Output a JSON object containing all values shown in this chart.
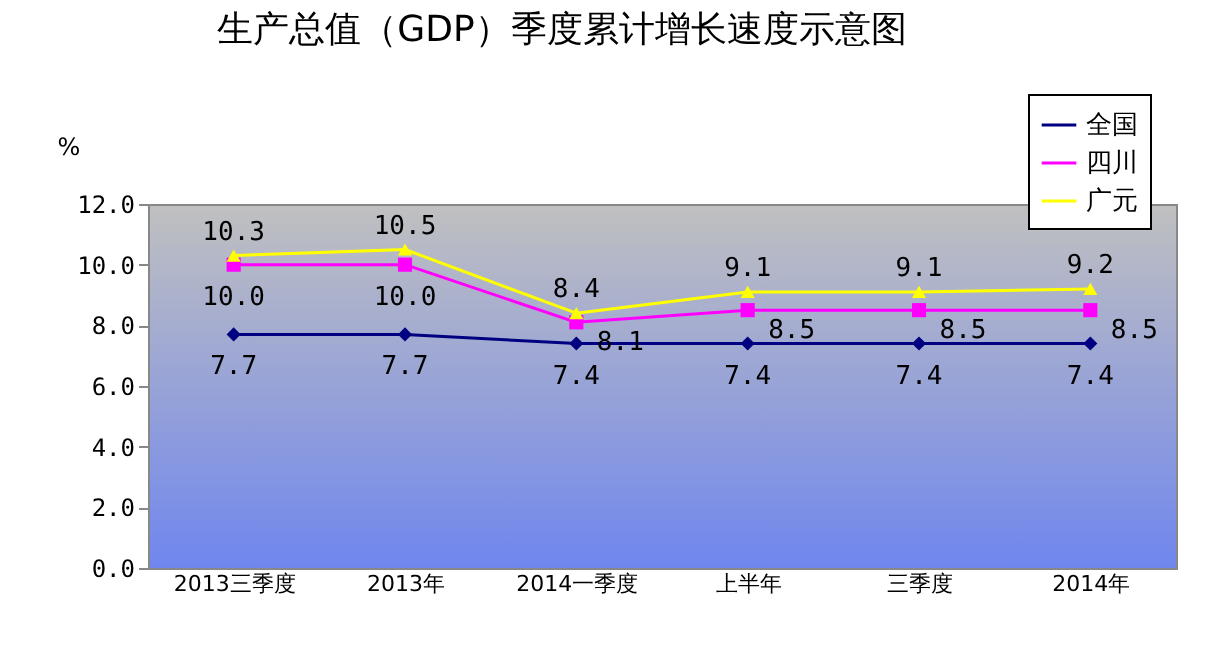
{
  "chart_data": {
    "type": "line",
    "title": "生产总值（GDP）季度累计增长速度示意图",
    "ylabel": "%",
    "categories": [
      "2013三季度",
      "2013年",
      "2014一季度",
      "上半年",
      "三季度",
      "2014年"
    ],
    "series": [
      {
        "name": "全国",
        "color": "#000080",
        "marker": "diamond",
        "values": [
          7.7,
          7.7,
          7.4,
          7.4,
          7.4,
          7.4
        ],
        "value_labels": [
          "7.7",
          "7.7",
          "7.4",
          "7.4",
          "7.4",
          "7.4"
        ]
      },
      {
        "name": "四川",
        "color": "#ff00ff",
        "marker": "square",
        "values": [
          10.0,
          10.0,
          8.1,
          8.5,
          8.5,
          8.5
        ],
        "value_labels": [
          "10.0",
          "10.0",
          "8.1",
          "8.5",
          "8.5",
          "8.5"
        ]
      },
      {
        "name": "广元",
        "color": "#ffff00",
        "marker": "triangle",
        "values": [
          10.3,
          10.5,
          8.4,
          9.1,
          9.1,
          9.2
        ],
        "value_labels": [
          "10.3",
          "10.5",
          "8.4",
          "9.1",
          "9.1",
          "9.2"
        ]
      }
    ],
    "ylim": [
      0,
      12
    ],
    "yticks": [
      {
        "value": 0,
        "label": "0.0"
      },
      {
        "value": 2,
        "label": "2.0"
      },
      {
        "value": 4,
        "label": "4.0"
      },
      {
        "value": 6,
        "label": "6.0"
      },
      {
        "value": 8,
        "label": "8.0"
      },
      {
        "value": 10,
        "label": "10.0"
      },
      {
        "value": 12,
        "label": "12.0"
      }
    ],
    "legend": "top right",
    "grid": false
  }
}
